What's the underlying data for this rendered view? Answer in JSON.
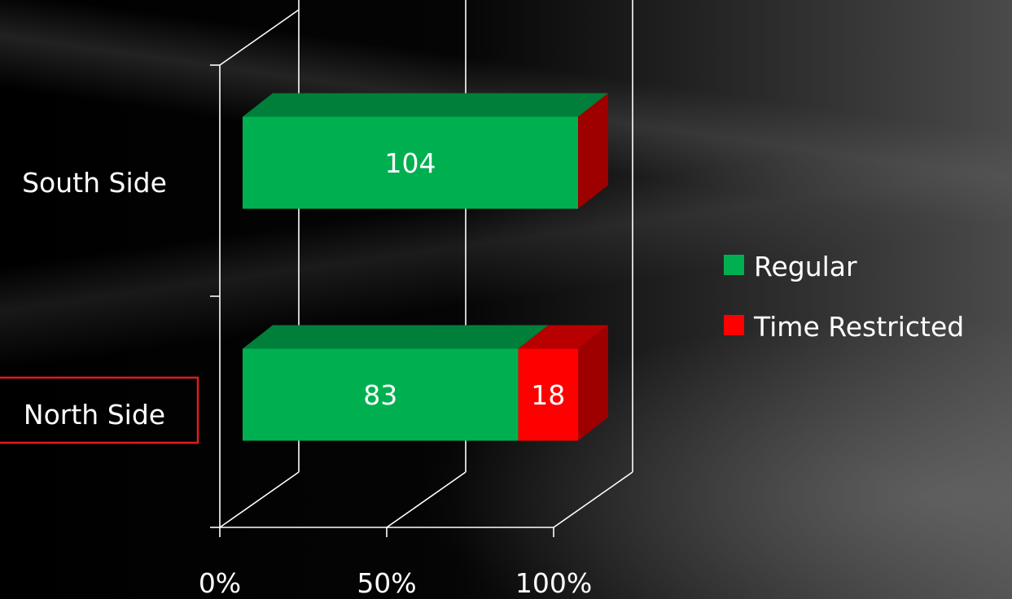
{
  "chart_data": {
    "type": "bar",
    "orientation": "horizontal",
    "stacking": "percent",
    "style": "3d",
    "categories": [
      "North Side",
      "South Side"
    ],
    "series": [
      {
        "name": "Regular",
        "values": [
          83,
          104
        ],
        "color": "#00b050"
      },
      {
        "name": "Time Restricted",
        "values": [
          18,
          0
        ],
        "color": "#ff0000"
      }
    ],
    "x_ticks": [
      "0%",
      "50%",
      "100%"
    ],
    "xlim": [
      0,
      100
    ],
    "grid": true,
    "legend": {
      "position": "right"
    },
    "highlighted_category": "North Side",
    "highlight_color": "#e31b1b",
    "title": "",
    "xlabel": "",
    "ylabel": ""
  }
}
